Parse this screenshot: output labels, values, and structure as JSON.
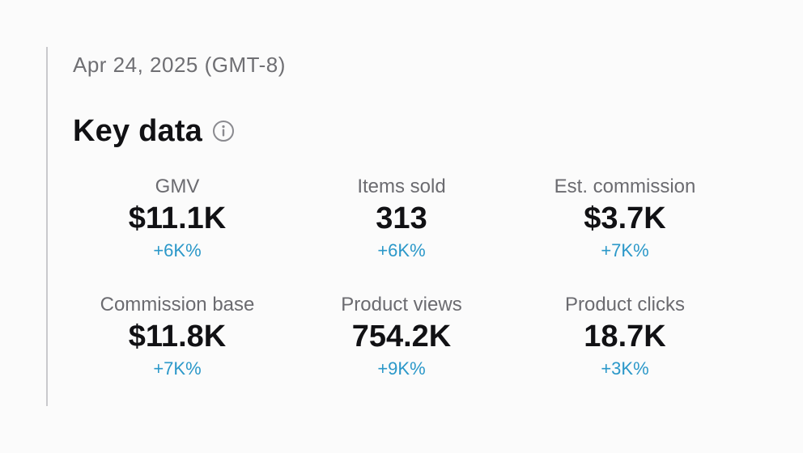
{
  "header": {
    "date": "Apr 24, 2025 (GMT-8)"
  },
  "section": {
    "title": "Key data",
    "info_icon": "info-circle-icon"
  },
  "metrics": [
    {
      "label": "GMV",
      "value": "$11.1K",
      "change": "+6K%"
    },
    {
      "label": "Items sold",
      "value": "313",
      "change": "+6K%"
    },
    {
      "label": "Est. commission",
      "value": "$3.7K",
      "change": "+7K%"
    },
    {
      "label": "Commission base",
      "value": "$11.8K",
      "change": "+7K%"
    },
    {
      "label": "Product views",
      "value": "754.2K",
      "change": "+9K%"
    },
    {
      "label": "Product clicks",
      "value": "18.7K",
      "change": "+3K%"
    }
  ],
  "colors": {
    "change_positive": "#2b98c9",
    "value_text": "#111114",
    "label_text": "#6b6b70",
    "divider": "#c9c9cc"
  }
}
